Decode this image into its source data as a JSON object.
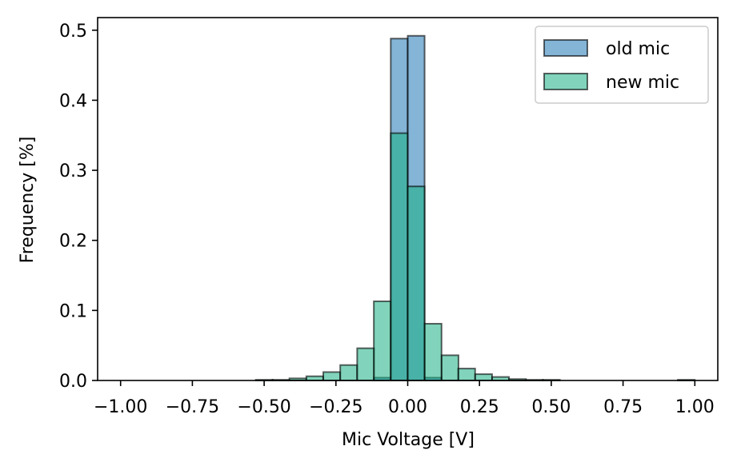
{
  "chart_data": {
    "type": "bar",
    "title": "",
    "xlabel": "Mic Voltage [V]",
    "ylabel": "Frequency [%]",
    "xlim": [
      -1.08,
      1.08
    ],
    "ylim": [
      0,
      0.518
    ],
    "bin_width": 0.0588,
    "x_ticks": [
      -1.0,
      -0.75,
      -0.5,
      -0.25,
      0.0,
      0.25,
      0.5,
      0.75,
      1.0
    ],
    "x_tick_labels": [
      "−1.00",
      "−0.75",
      "−0.50",
      "−0.25",
      "0.00",
      "0.25",
      "0.50",
      "0.75",
      "1.00"
    ],
    "y_ticks": [
      0.0,
      0.1,
      0.2,
      0.3,
      0.4,
      0.5
    ],
    "y_tick_labels": [
      "0.0",
      "0.1",
      "0.2",
      "0.3",
      "0.4",
      "0.5"
    ],
    "legend_position": "top-right",
    "series": [
      {
        "name": "old mic",
        "color": "#1f77b4",
        "bins": [
          {
            "x0": -0.118,
            "h": 0.004
          },
          {
            "x0": -0.059,
            "h": 0.488
          },
          {
            "x0": 0.0,
            "h": 0.492
          },
          {
            "x0": 0.059,
            "h": 0.004
          }
        ]
      },
      {
        "name": "new mic",
        "color": "#1ab184",
        "bins": [
          {
            "x0": -0.529,
            "h": 0.001
          },
          {
            "x0": -0.471,
            "h": 0.001
          },
          {
            "x0": -0.412,
            "h": 0.003
          },
          {
            "x0": -0.353,
            "h": 0.006
          },
          {
            "x0": -0.294,
            "h": 0.012
          },
          {
            "x0": -0.235,
            "h": 0.022
          },
          {
            "x0": -0.176,
            "h": 0.046
          },
          {
            "x0": -0.118,
            "h": 0.113
          },
          {
            "x0": -0.059,
            "h": 0.353
          },
          {
            "x0": 0.0,
            "h": 0.277
          },
          {
            "x0": 0.059,
            "h": 0.081
          },
          {
            "x0": 0.118,
            "h": 0.036
          },
          {
            "x0": 0.176,
            "h": 0.017
          },
          {
            "x0": 0.235,
            "h": 0.009
          },
          {
            "x0": 0.294,
            "h": 0.005
          },
          {
            "x0": 0.353,
            "h": 0.002
          },
          {
            "x0": 0.412,
            "h": 0.001
          },
          {
            "x0": 0.471,
            "h": 0.001
          },
          {
            "x0": 0.941,
            "h": 0.001
          }
        ]
      }
    ]
  }
}
